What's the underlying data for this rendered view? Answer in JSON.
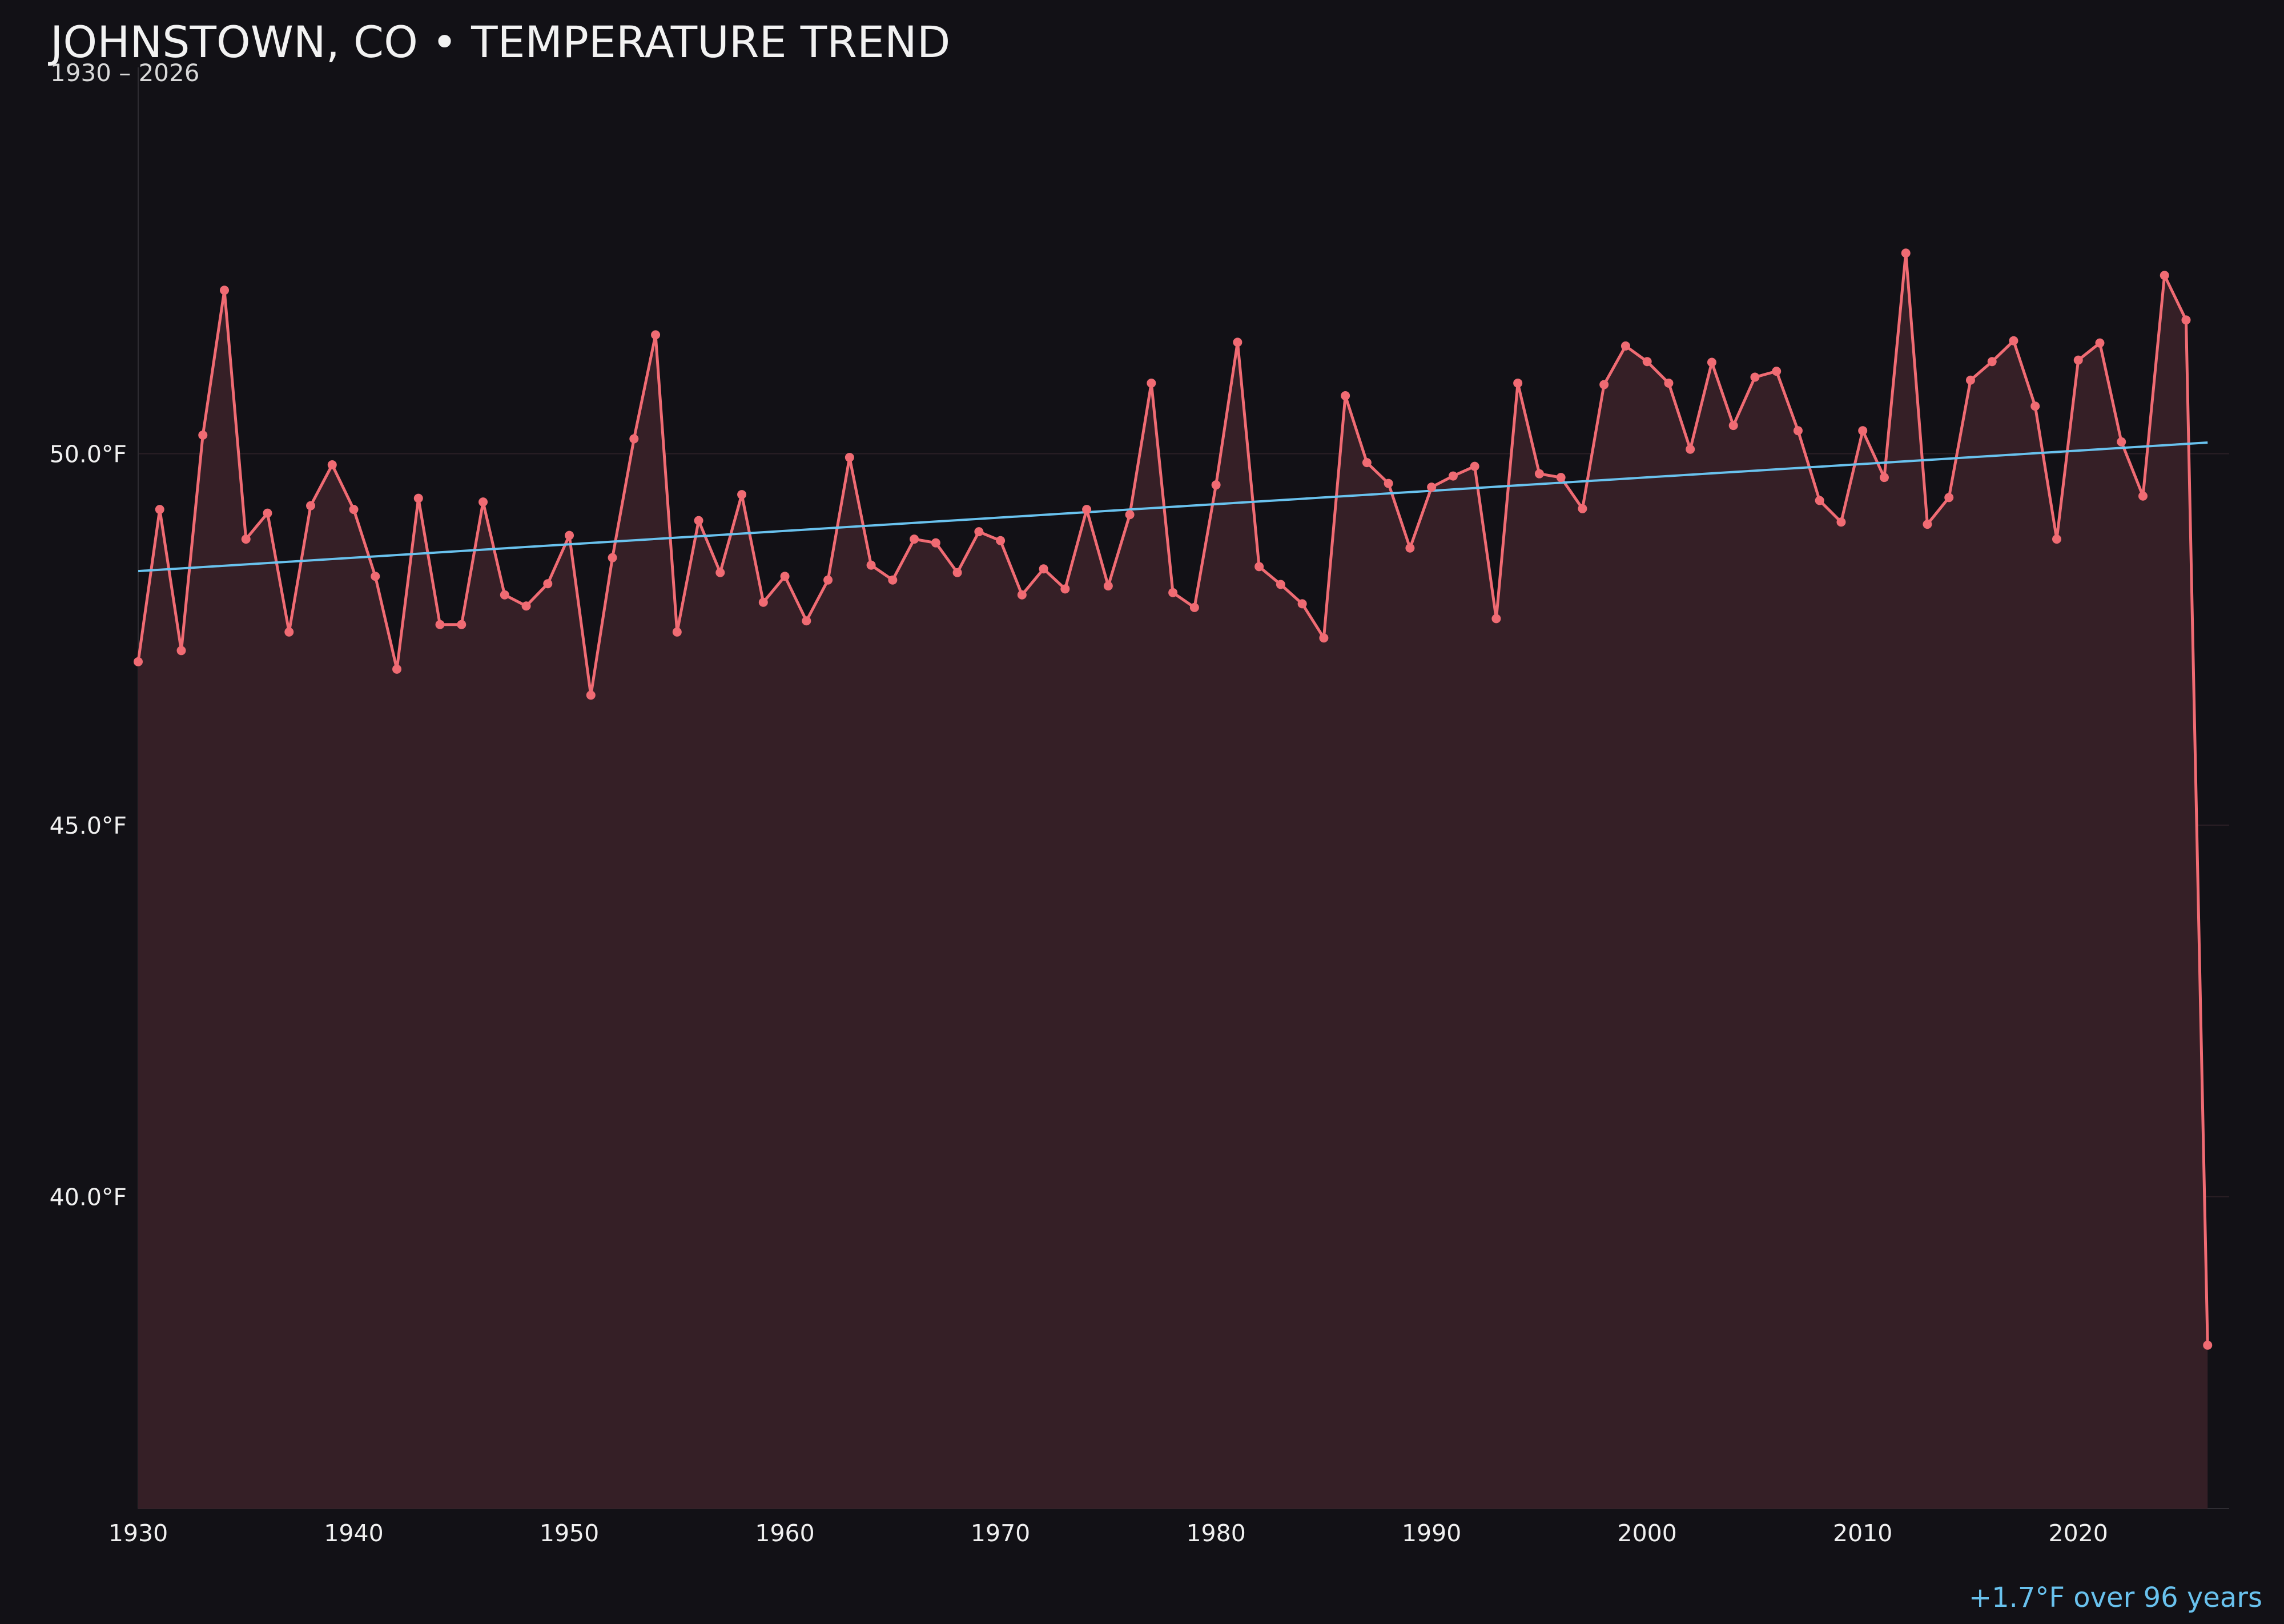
{
  "chart_data": {
    "type": "line",
    "title": "JOHNSTOWN, CO • TEMPERATURE TREND",
    "subtitle": "1930 – 2026",
    "x_ticks": [
      "1930",
      "1940",
      "1950",
      "1960",
      "1970",
      "1980",
      "1990",
      "2000",
      "2010",
      "2020"
    ],
    "x_tick_values": [
      1930,
      1940,
      1950,
      1960,
      1970,
      1980,
      1990,
      2000,
      2010,
      2020
    ],
    "y_ticks": [
      "40.0°F",
      "45.0°F",
      "50.0°F"
    ],
    "y_tick_values": [
      40,
      45,
      50
    ],
    "xlim": [
      1930,
      2027
    ],
    "ylim": [
      35.8,
      55.2
    ],
    "grid": "horizontal",
    "annotation": "+1.7°F over 96 years",
    "colors": {
      "background": "#121116",
      "series": "#f06b73",
      "area": "#351f26",
      "trend": "#69c2ee"
    },
    "trend": {
      "x": [
        1930,
        2026
      ],
      "y": [
        48.42,
        50.15
      ]
    },
    "series": [
      {
        "x": [
          1930,
          1931,
          1932,
          1933,
          1934,
          1935,
          1936,
          1937,
          1938,
          1939,
          1940,
          1941,
          1942,
          1943,
          1944,
          1945,
          1946,
          1947,
          1948,
          1949,
          1950,
          1951,
          1952,
          1953,
          1954,
          1955,
          1956,
          1957,
          1958,
          1959,
          1960,
          1961,
          1962,
          1963,
          1964,
          1965,
          1966,
          1967,
          1968,
          1969,
          1970,
          1971,
          1972,
          1973,
          1974,
          1975,
          1976,
          1977,
          1978,
          1979,
          1980,
          1981,
          1982,
          1983,
          1984,
          1985,
          1986,
          1987,
          1988,
          1989,
          1990,
          1991,
          1992,
          1993,
          1994,
          1995,
          1996,
          1997,
          1998,
          1999,
          2000,
          2001,
          2002,
          2003,
          2004,
          2005,
          2006,
          2007,
          2008,
          2009,
          2010,
          2011,
          2012,
          2013,
          2014,
          2015,
          2016,
          2017,
          2018,
          2019,
          2020,
          2021,
          2022,
          2023,
          2024,
          2025,
          2026
        ],
        "y": [
          47.2,
          49.25,
          47.35,
          50.25,
          52.2,
          48.85,
          49.2,
          47.6,
          49.3,
          49.85,
          49.25,
          48.35,
          47.1,
          49.4,
          47.7,
          47.7,
          49.35,
          48.1,
          47.95,
          48.25,
          48.9,
          46.75,
          48.6,
          50.2,
          51.6,
          47.6,
          49.1,
          48.4,
          49.45,
          48,
          48.35,
          47.75,
          48.3,
          49.95,
          48.5,
          48.3,
          48.85,
          48.8,
          48.4,
          48.95,
          48.83,
          48.1,
          48.45,
          48.18,
          49.25,
          48.22,
          49.18,
          50.95,
          48.13,
          47.93,
          49.58,
          51.5,
          48.48,
          48.24,
          47.98,
          47.52,
          50.78,
          49.88,
          49.6,
          48.73,
          49.55,
          49.7,
          49.83,
          47.78,
          50.95,
          49.73,
          49.68,
          49.26,
          50.93,
          51.45,
          51.24,
          50.95,
          50.06,
          51.23,
          50.38,
          51.03,
          51.11,
          50.31,
          49.37,
          49.08,
          50.31,
          49.68,
          52.7,
          49.05,
          49.41,
          50.99,
          51.24,
          51.52,
          50.64,
          48.85,
          51.26,
          51.49,
          50.16,
          49.43,
          52.4,
          51.8,
          38.0
        ]
      }
    ]
  }
}
